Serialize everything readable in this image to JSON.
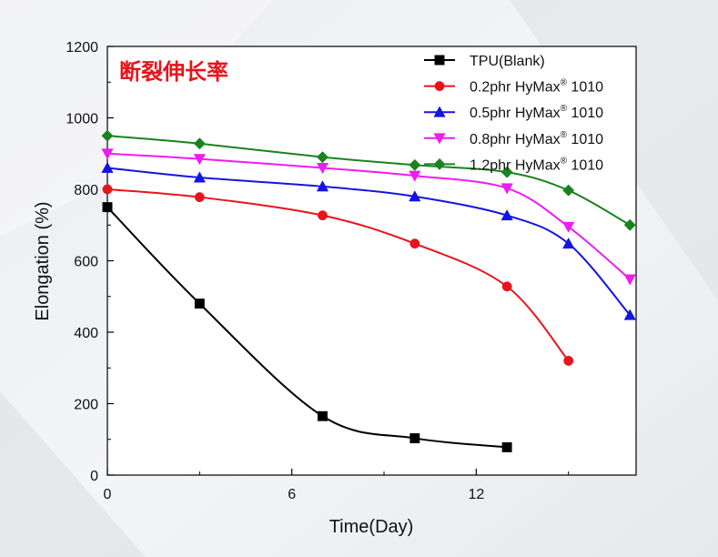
{
  "chart_data": {
    "type": "line",
    "title": "断裂伸长率",
    "xlabel": "Time(Day)",
    "ylabel": "Elongation (%)",
    "xlim": [
      0,
      17.2
    ],
    "ylim": [
      0,
      1200
    ],
    "x_ticks": [
      0,
      6,
      12
    ],
    "y_ticks": [
      0,
      200,
      400,
      600,
      800,
      1000,
      1200
    ],
    "grid": false,
    "legend_position": "top-right",
    "series": [
      {
        "name_main": "TPU(Blank)",
        "name_sup": "",
        "name_tail": "",
        "color": "#000000",
        "marker": "square",
        "x": [
          0,
          3,
          7,
          10,
          13
        ],
        "y": [
          750,
          480,
          165,
          103,
          78
        ]
      },
      {
        "name_main": "0.2phr HyMax",
        "name_sup": "®",
        "name_tail": " 1010",
        "color": "#e8141b",
        "marker": "circle",
        "x": [
          0,
          3,
          7,
          10,
          13,
          15
        ],
        "y": [
          800,
          778,
          727,
          648,
          528,
          320
        ]
      },
      {
        "name_main": "0.5phr HyMax",
        "name_sup": "®",
        "name_tail": " 1010",
        "color": "#1515e0",
        "marker": "triangle-up",
        "x": [
          0,
          3,
          7,
          10,
          13,
          15,
          17
        ],
        "y": [
          860,
          833,
          808,
          780,
          727,
          648,
          448
        ]
      },
      {
        "name_main": "0.8phr HyMax",
        "name_sup": "®",
        "name_tail": " 1010",
        "color": "#ef1cef",
        "marker": "triangle-down",
        "x": [
          0,
          3,
          7,
          10,
          13,
          15,
          17
        ],
        "y": [
          900,
          885,
          860,
          838,
          803,
          695,
          548
        ]
      },
      {
        "name_main": "1.2phr HyMax",
        "name_sup": "®",
        "name_tail": " 1010",
        "color": "#18841e",
        "marker": "diamond",
        "x": [
          0,
          3,
          7,
          10,
          13,
          15,
          17
        ],
        "y": [
          950,
          928,
          890,
          868,
          848,
          797,
          700
        ]
      }
    ]
  }
}
